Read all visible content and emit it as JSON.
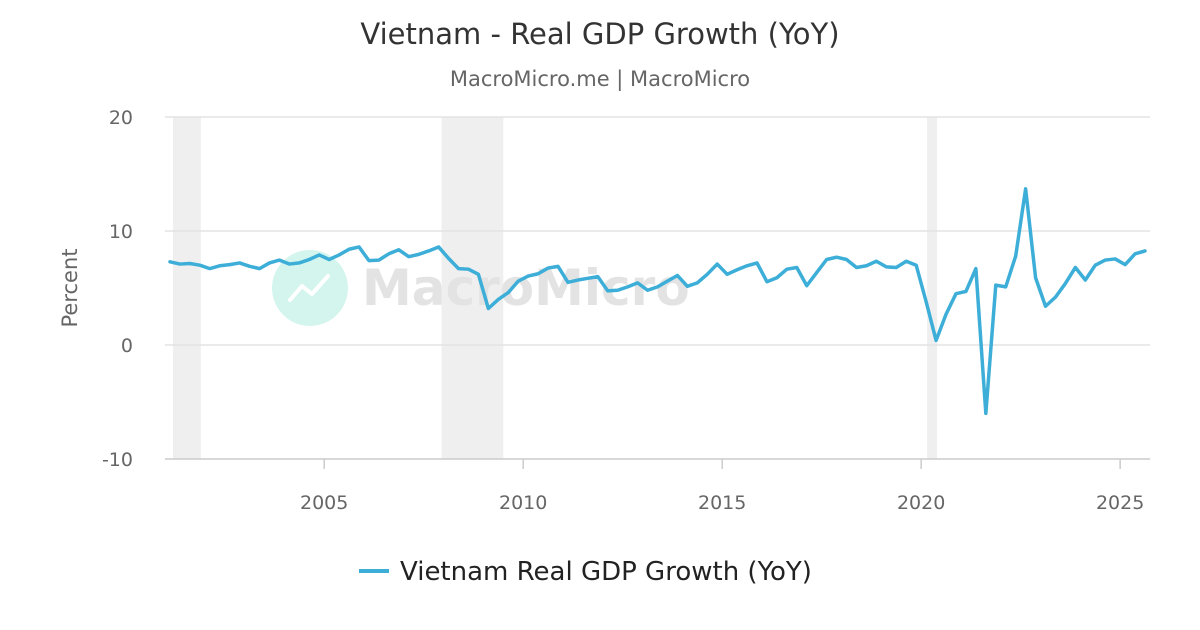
{
  "header": {
    "title": "Vietnam - Real GDP Growth (YoY)",
    "subtitle": "MacroMicro.me | MacroMicro"
  },
  "watermark": {
    "text": "MacroMicro"
  },
  "colors": {
    "series": "#3daed8",
    "grid": "#e3e3e3",
    "recession": "#efefef",
    "watermark_circle": "#d4f5ee"
  },
  "chart_data": {
    "type": "line",
    "title": "Vietnam - Real GDP Growth (YoY)",
    "subtitle": "MacroMicro.me | MacroMicro",
    "xlabel": "",
    "ylabel": "Percent",
    "xlim": [
      2001.0,
      2025.75
    ],
    "ylim": [
      -10,
      20
    ],
    "x_ticks": [
      2005,
      2010,
      2015,
      2020,
      2025
    ],
    "y_ticks": [
      -10,
      0,
      10,
      20
    ],
    "grid": true,
    "legend_position": "bottom-center",
    "recession_periods": [
      [
        2001.2,
        2001.9
      ],
      [
        2007.95,
        2009.5
      ],
      [
        2020.15,
        2020.4
      ]
    ],
    "series": [
      {
        "name": "Vietnam Real GDP Growth (YoY)",
        "color": "#3daed8",
        "points": [
          [
            2001.125,
            7.3
          ],
          [
            2001.375,
            7.1
          ],
          [
            2001.625,
            7.15
          ],
          [
            2001.875,
            7.0
          ],
          [
            2002.125,
            6.7
          ],
          [
            2002.375,
            6.95
          ],
          [
            2002.625,
            7.05
          ],
          [
            2002.875,
            7.2
          ],
          [
            2003.125,
            6.9
          ],
          [
            2003.375,
            6.7
          ],
          [
            2003.625,
            7.2
          ],
          [
            2003.875,
            7.45
          ],
          [
            2004.125,
            7.1
          ],
          [
            2004.375,
            7.2
          ],
          [
            2004.625,
            7.5
          ],
          [
            2004.875,
            7.9
          ],
          [
            2005.125,
            7.5
          ],
          [
            2005.375,
            7.9
          ],
          [
            2005.625,
            8.4
          ],
          [
            2005.875,
            8.6
          ],
          [
            2006.125,
            7.4
          ],
          [
            2006.375,
            7.45
          ],
          [
            2006.625,
            8.0
          ],
          [
            2006.875,
            8.35
          ],
          [
            2007.125,
            7.75
          ],
          [
            2007.375,
            7.95
          ],
          [
            2007.625,
            8.25
          ],
          [
            2007.875,
            8.6
          ],
          [
            2008.125,
            7.6
          ],
          [
            2008.375,
            6.7
          ],
          [
            2008.625,
            6.65
          ],
          [
            2008.875,
            6.2
          ],
          [
            2009.125,
            3.2
          ],
          [
            2009.375,
            4.0
          ],
          [
            2009.625,
            4.6
          ],
          [
            2009.875,
            5.6
          ],
          [
            2010.125,
            6.05
          ],
          [
            2010.375,
            6.25
          ],
          [
            2010.625,
            6.75
          ],
          [
            2010.875,
            6.9
          ],
          [
            2011.125,
            5.5
          ],
          [
            2011.375,
            5.7
          ],
          [
            2011.625,
            5.85
          ],
          [
            2011.875,
            6.0
          ],
          [
            2012.125,
            4.75
          ],
          [
            2012.375,
            4.8
          ],
          [
            2012.625,
            5.1
          ],
          [
            2012.875,
            5.45
          ],
          [
            2013.125,
            4.8
          ],
          [
            2013.375,
            5.1
          ],
          [
            2013.625,
            5.6
          ],
          [
            2013.875,
            6.1
          ],
          [
            2014.125,
            5.15
          ],
          [
            2014.375,
            5.45
          ],
          [
            2014.625,
            6.2
          ],
          [
            2014.875,
            7.1
          ],
          [
            2015.125,
            6.2
          ],
          [
            2015.375,
            6.6
          ],
          [
            2015.625,
            6.95
          ],
          [
            2015.875,
            7.2
          ],
          [
            2016.125,
            5.55
          ],
          [
            2016.375,
            5.9
          ],
          [
            2016.625,
            6.65
          ],
          [
            2016.875,
            6.8
          ],
          [
            2017.125,
            5.2
          ],
          [
            2017.375,
            6.35
          ],
          [
            2017.625,
            7.5
          ],
          [
            2017.875,
            7.7
          ],
          [
            2018.125,
            7.5
          ],
          [
            2018.375,
            6.8
          ],
          [
            2018.625,
            6.95
          ],
          [
            2018.875,
            7.35
          ],
          [
            2019.125,
            6.85
          ],
          [
            2019.375,
            6.8
          ],
          [
            2019.625,
            7.35
          ],
          [
            2019.875,
            7.0
          ],
          [
            2020.125,
            3.8
          ],
          [
            2020.375,
            0.4
          ],
          [
            2020.625,
            2.7
          ],
          [
            2020.875,
            4.5
          ],
          [
            2021.125,
            4.7
          ],
          [
            2021.375,
            6.7
          ],
          [
            2021.625,
            -6.0
          ],
          [
            2021.875,
            5.25
          ],
          [
            2022.125,
            5.1
          ],
          [
            2022.375,
            7.8
          ],
          [
            2022.625,
            13.7
          ],
          [
            2022.875,
            5.9
          ],
          [
            2023.125,
            3.4
          ],
          [
            2023.375,
            4.2
          ],
          [
            2023.625,
            5.4
          ],
          [
            2023.875,
            6.8
          ],
          [
            2024.125,
            5.7
          ],
          [
            2024.375,
            7.0
          ],
          [
            2024.625,
            7.45
          ],
          [
            2024.875,
            7.55
          ],
          [
            2025.125,
            7.05
          ],
          [
            2025.375,
            8.0
          ],
          [
            2025.625,
            8.25
          ]
        ]
      }
    ]
  }
}
